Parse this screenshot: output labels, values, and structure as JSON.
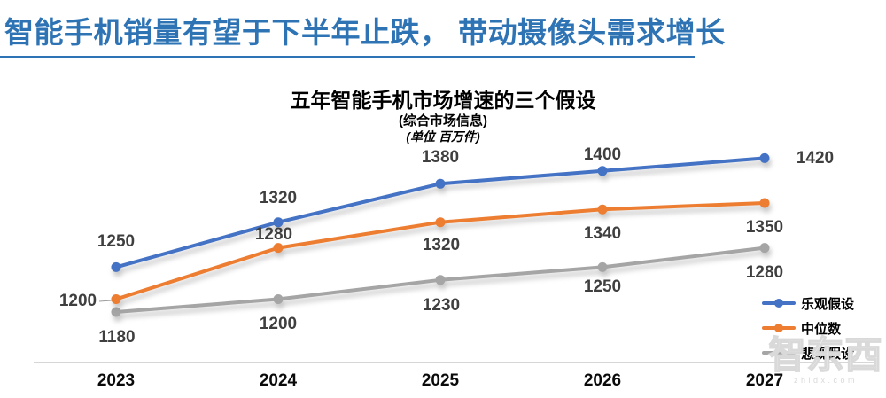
{
  "page": {
    "header": {
      "title": "智能手机销量有望于下半年止跌， 带动摄像头需求增长",
      "accent_color": "#2E74B5"
    }
  },
  "watermark": {
    "logo_text": "智东西",
    "domain": "zhidx.com"
  },
  "chart_data": {
    "type": "line",
    "title": "五年智能手机市场增速的三个假设",
    "subtitle": "(综合市场信息)",
    "unit": "(单位 百万件)",
    "categories": [
      "2023",
      "2024",
      "2025",
      "2026",
      "2027"
    ],
    "series": [
      {
        "name": "乐观假设",
        "color": "#4472C4",
        "values": [
          1250,
          1320,
          1380,
          1400,
          1420
        ]
      },
      {
        "name": "中位数",
        "color": "#ED7D31",
        "values": [
          1200,
          1280,
          1320,
          1340,
          1350
        ]
      },
      {
        "name": "悲观假设",
        "color": "#A5A5A5",
        "values": [
          1180,
          1200,
          1230,
          1250,
          1280
        ]
      }
    ],
    "ylim": [
      1100,
      1480
    ],
    "grid": false,
    "y_axis_visible": false,
    "legend_position": "right",
    "data_labels": true,
    "label_color": "#3f3f3f",
    "axis_line_color": "#d6d6d6"
  }
}
